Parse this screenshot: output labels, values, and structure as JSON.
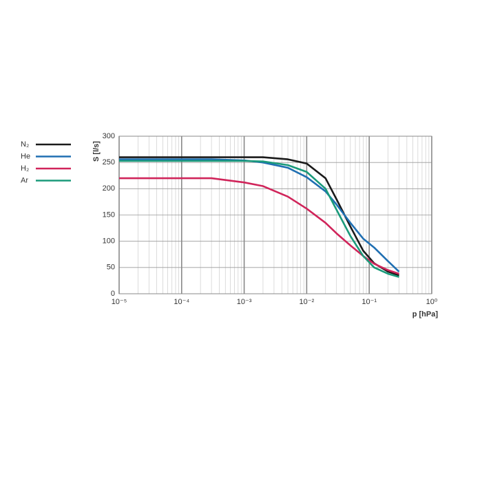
{
  "chart_data": {
    "type": "line",
    "y_label": "S [l/s]",
    "x_label": "p [hPa]",
    "x": [
      1e-05,
      0.0001,
      0.0003,
      0.001,
      0.002,
      0.005,
      0.01,
      0.02,
      0.03,
      0.05,
      0.08,
      0.12,
      0.2,
      0.3
    ],
    "series": [
      {
        "name": "N₂",
        "color": "#1a1a1a",
        "values": [
          260,
          260,
          260,
          260,
          260,
          256,
          248,
          220,
          180,
          128,
          82,
          58,
          42,
          35
        ]
      },
      {
        "name": "He",
        "color": "#1f6fb2",
        "values": [
          256,
          256,
          256,
          254,
          250,
          240,
          222,
          195,
          170,
          135,
          105,
          88,
          62,
          42
        ]
      },
      {
        "name": "H₂",
        "color": "#d0245a",
        "values": [
          220,
          220,
          220,
          212,
          205,
          185,
          162,
          135,
          115,
          92,
          72,
          57,
          45,
          38
        ]
      },
      {
        "name": "Ar",
        "color": "#1a9a7a",
        "values": [
          253,
          253,
          253,
          253,
          252,
          245,
          232,
          200,
          160,
          110,
          72,
          50,
          38,
          32
        ]
      }
    ],
    "xlim": [
      1e-05,
      1
    ],
    "x_scale": "log",
    "xticks": [
      {
        "value": 1e-05,
        "label": "10⁻⁵"
      },
      {
        "value": 0.0001,
        "label": "10⁻⁴"
      },
      {
        "value": 0.001,
        "label": "10⁻³"
      },
      {
        "value": 0.01,
        "label": "10⁻²"
      },
      {
        "value": 0.1,
        "label": "10⁻¹"
      },
      {
        "value": 1,
        "label": "10⁰"
      }
    ],
    "ylim": [
      0,
      300
    ],
    "yticks": [
      0,
      50,
      100,
      150,
      200,
      250,
      300
    ],
    "grid": true
  }
}
